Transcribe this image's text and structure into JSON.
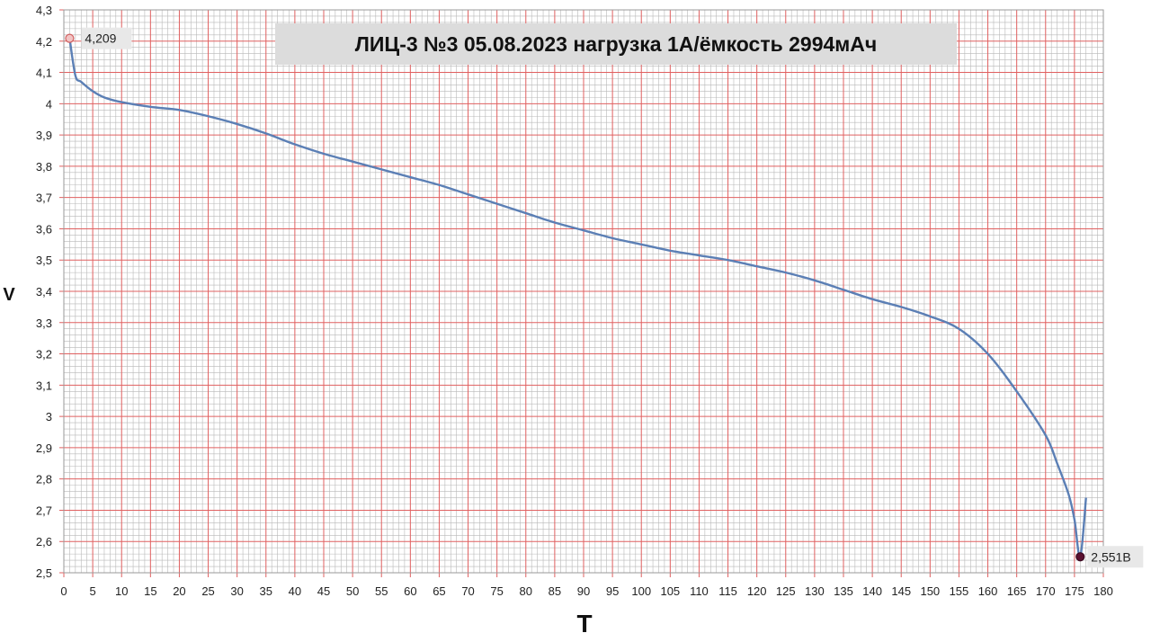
{
  "chart_data": {
    "type": "line",
    "title": "ЛИЦ-3 №3 05.08.2023  нагрузка 1А/ёмкость 2994мАч",
    "xlabel": "T",
    "ylabel": "V",
    "xlim": [
      0,
      180
    ],
    "ylim": [
      2.5,
      4.3
    ],
    "x_ticks": [
      "0",
      "5",
      "10",
      "15",
      "20",
      "25",
      "30",
      "35",
      "40",
      "45",
      "50",
      "55",
      "60",
      "65",
      "70",
      "75",
      "80",
      "85",
      "90",
      "95",
      "100",
      "105",
      "110",
      "115",
      "120",
      "125",
      "130",
      "135",
      "140",
      "145",
      "150",
      "155",
      "160",
      "165",
      "170",
      "175",
      "180"
    ],
    "y_ticks": [
      "2,5",
      "2,6",
      "2,7",
      "2,8",
      "2,9",
      "3",
      "3,1",
      "3,2",
      "3,3",
      "3,4",
      "3,5",
      "3,6",
      "3,7",
      "3,8",
      "3,9",
      "4",
      "4,1",
      "4,2",
      "4,3"
    ],
    "grid": true,
    "colors": {
      "major_grid": "#e06060",
      "minor_grid": "#b8b8b8",
      "line": "#5b7fb5",
      "start_marker": "#f2c4c4",
      "end_marker": "#5a1030",
      "annotation_bg": "#e8e8e8",
      "title_bg": "#dcdcdc"
    },
    "series": [
      {
        "x": [
          1,
          2,
          3,
          5,
          7,
          10,
          15,
          20,
          25,
          30,
          35,
          40,
          45,
          50,
          55,
          60,
          65,
          70,
          75,
          80,
          85,
          90,
          95,
          100,
          105,
          110,
          115,
          120,
          125,
          130,
          135,
          140,
          145,
          150,
          155,
          160,
          165,
          170,
          172,
          174,
          175,
          176,
          177
        ],
        "y": [
          4.209,
          4.09,
          4.07,
          4.04,
          4.02,
          4.005,
          3.99,
          3.98,
          3.96,
          3.935,
          3.905,
          3.87,
          3.84,
          3.815,
          3.79,
          3.765,
          3.74,
          3.71,
          3.68,
          3.65,
          3.62,
          3.595,
          3.57,
          3.55,
          3.53,
          3.515,
          3.5,
          3.48,
          3.46,
          3.435,
          3.405,
          3.375,
          3.35,
          3.32,
          3.28,
          3.2,
          3.08,
          2.94,
          2.85,
          2.75,
          2.67,
          2.551,
          2.74
        ]
      }
    ],
    "annotations": [
      {
        "x": 1,
        "y": 4.209,
        "label": "4,209"
      },
      {
        "x": 176,
        "y": 2.551,
        "label": "2,551В"
      }
    ]
  }
}
